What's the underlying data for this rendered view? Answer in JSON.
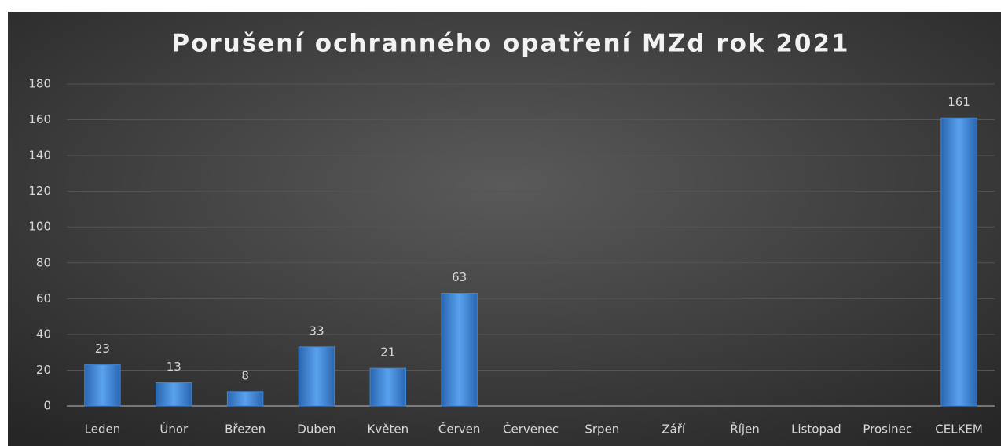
{
  "chart_data": {
    "type": "bar",
    "title": "Porušení ochranného opatření MZd rok 2021",
    "categories": [
      "Leden",
      "Únor",
      "Březen",
      "Duben",
      "Květen",
      "Červen",
      "Červenec",
      "Srpen",
      "Září",
      "Říjen",
      "Listopad",
      "Prosinec",
      "CELKEM"
    ],
    "values": [
      23,
      13,
      8,
      33,
      21,
      63,
      null,
      null,
      null,
      null,
      null,
      null,
      161
    ],
    "color": "#3f86d6",
    "ylim": [
      0,
      180
    ],
    "yticks": [
      0,
      20,
      40,
      60,
      80,
      100,
      120,
      140,
      160,
      180
    ],
    "grid": true
  }
}
